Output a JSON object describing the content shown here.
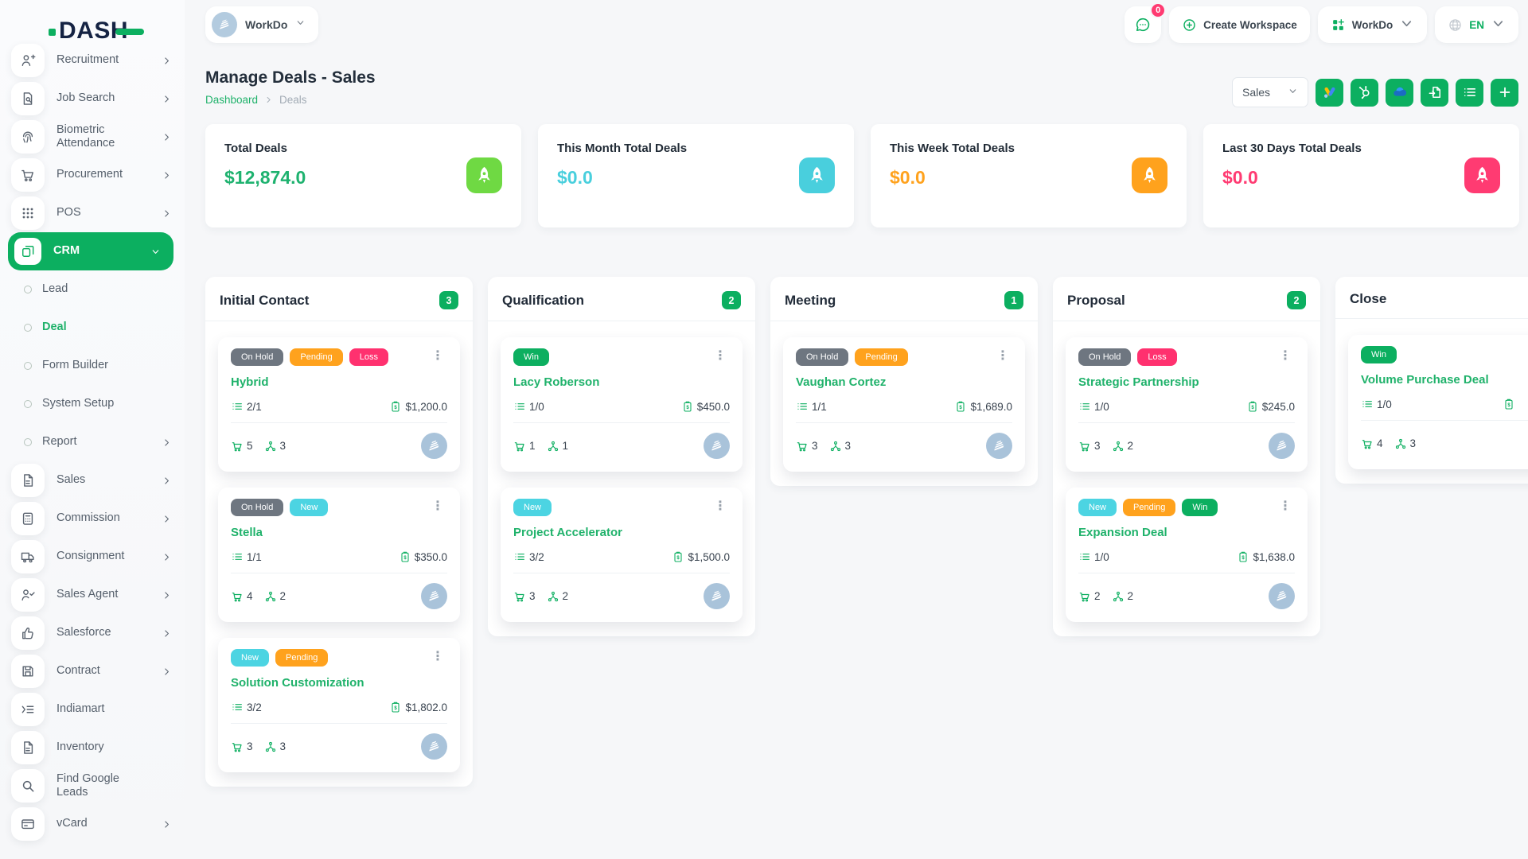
{
  "brand": {
    "logo_text": "DASH"
  },
  "header": {
    "workspace": {
      "name": "WorkDo",
      "avatar_icon": "building-icon"
    },
    "messages_badge": "0",
    "messages_icon": "chat-icon",
    "create_workspace_label": "Create Workspace",
    "workdo_dropdown_label": "WorkDo",
    "language": "EN"
  },
  "page": {
    "title": "Manage Deals - Sales",
    "breadcrumb": [
      "Dashboard",
      "Deals"
    ],
    "pipeline_select": "Sales",
    "toolbar_buttons": [
      {
        "name": "google-ads-button",
        "icon": "google-ads-icon"
      },
      {
        "name": "hubspot-button",
        "icon": "hubspot-icon"
      },
      {
        "name": "onedrive-button",
        "icon": "onedrive-icon"
      },
      {
        "name": "export-button",
        "icon": "export-icon"
      },
      {
        "name": "list-view-button",
        "icon": "list-icon"
      },
      {
        "name": "add-deal-button",
        "icon": "add-icon"
      }
    ]
  },
  "stats": [
    {
      "label": "Total Deals",
      "value": "$12,874.0",
      "value_color": "#1eb26f",
      "icon": "rocket-icon",
      "icon_bg": "#6fd943"
    },
    {
      "label": "This Month Total Deals",
      "value": "$0.0",
      "value_color": "#49cfdd",
      "icon": "rocket-icon",
      "icon_bg": "#49cfdd"
    },
    {
      "label": "This Week Total Deals",
      "value": "$0.0",
      "value_color": "#ffa21d",
      "icon": "rocket-icon",
      "icon_bg": "#ffa21d"
    },
    {
      "label": "Last 30 Days Total Deals",
      "value": "$0.0",
      "value_color": "#ff3b72",
      "icon": "rocket-icon",
      "icon_bg": "#ff3b72"
    }
  ],
  "badge_colors": {
    "On Hold": "#6e7680",
    "Pending": "#ffa21d",
    "Loss": "#ff316f",
    "Win": "#0caf60",
    "New": "#4cd4e2"
  },
  "sidebar": {
    "items": [
      {
        "label": "Recruitment",
        "icon": "person-add-icon",
        "type": "main",
        "chevron": "right"
      },
      {
        "label": "Job Search",
        "icon": "document-search-icon",
        "type": "main",
        "chevron": "right"
      },
      {
        "label": "Biometric Attendance",
        "icon": "fingerprint-icon",
        "type": "main",
        "chevron": "right"
      },
      {
        "label": "Procurement",
        "icon": "cart-icon",
        "type": "main",
        "chevron": "right"
      },
      {
        "label": "POS",
        "icon": "grid-dots-icon",
        "type": "main",
        "chevron": "right"
      },
      {
        "label": "CRM",
        "icon": "cards-icon",
        "type": "main",
        "chevron": "down",
        "active": true
      },
      {
        "label": "Lead",
        "type": "sub"
      },
      {
        "label": "Deal",
        "type": "sub",
        "active": true
      },
      {
        "label": "Form Builder",
        "type": "sub"
      },
      {
        "label": "System Setup",
        "type": "sub"
      },
      {
        "label": "Report",
        "type": "sub",
        "chevron": "right"
      },
      {
        "label": "Sales",
        "icon": "file-icon",
        "type": "main",
        "chevron": "right"
      },
      {
        "label": "Commission",
        "icon": "calculator-icon",
        "type": "main",
        "chevron": "right"
      },
      {
        "label": "Consignment",
        "icon": "truck-icon",
        "type": "main",
        "chevron": "right"
      },
      {
        "label": "Sales Agent",
        "icon": "person-check-icon",
        "type": "main",
        "chevron": "right"
      },
      {
        "label": "Salesforce",
        "icon": "thumbs-up-icon",
        "type": "main",
        "chevron": "right"
      },
      {
        "label": "Contract",
        "icon": "save-icon",
        "type": "main",
        "chevron": "right"
      },
      {
        "label": "Indiamart",
        "icon": "list-indent-icon",
        "type": "main"
      },
      {
        "label": "Inventory",
        "icon": "file-icon",
        "type": "main"
      },
      {
        "label": "Find Google Leads",
        "icon": "search-icon",
        "type": "main"
      },
      {
        "label": "vCard",
        "icon": "id-card-icon",
        "type": "main",
        "chevron": "right"
      }
    ]
  },
  "board": {
    "columns": [
      {
        "name": "Initial Contact",
        "count": "3",
        "cards": [
          {
            "title": "Hybrid",
            "badges": [
              "On Hold",
              "Pending",
              "Loss"
            ],
            "tasks": "2/1",
            "value": "$1,200.0",
            "products": "5",
            "users": "3"
          },
          {
            "title": "Stella",
            "badges": [
              "On Hold",
              "New"
            ],
            "tasks": "1/1",
            "value": "$350.0",
            "products": "4",
            "users": "2"
          },
          {
            "title": "Solution Customization",
            "badges": [
              "New",
              "Pending"
            ],
            "tasks": "3/2",
            "value": "$1,802.0",
            "products": "3",
            "users": "3"
          }
        ]
      },
      {
        "name": "Qualification",
        "count": "2",
        "cards": [
          {
            "title": "Lacy Roberson",
            "badges": [
              "Win"
            ],
            "tasks": "1/0",
            "value": "$450.0",
            "products": "1",
            "users": "1"
          },
          {
            "title": "Project Accelerator",
            "badges": [
              "New"
            ],
            "tasks": "3/2",
            "value": "$1,500.0",
            "products": "3",
            "users": "2"
          }
        ]
      },
      {
        "name": "Meeting",
        "count": "1",
        "cards": [
          {
            "title": "Vaughan Cortez",
            "badges": [
              "On Hold",
              "Pending"
            ],
            "tasks": "1/1",
            "value": "$1,689.0",
            "products": "3",
            "users": "3"
          }
        ]
      },
      {
        "name": "Proposal",
        "count": "2",
        "cards": [
          {
            "title": "Strategic Partnership",
            "badges": [
              "On Hold",
              "Loss"
            ],
            "tasks": "1/0",
            "value": "$245.0",
            "products": "3",
            "users": "2"
          },
          {
            "title": "Expansion Deal",
            "badges": [
              "New",
              "Pending",
              "Win"
            ],
            "tasks": "1/0",
            "value": "$1,638.0",
            "products": "2",
            "users": "2"
          }
        ]
      },
      {
        "name": "Close",
        "count": null,
        "cards": [
          {
            "title": "Volume Purchase Deal",
            "badges": [
              "Win"
            ],
            "tasks": "1/0",
            "value": "",
            "products": "4",
            "users": "3"
          }
        ]
      }
    ]
  }
}
